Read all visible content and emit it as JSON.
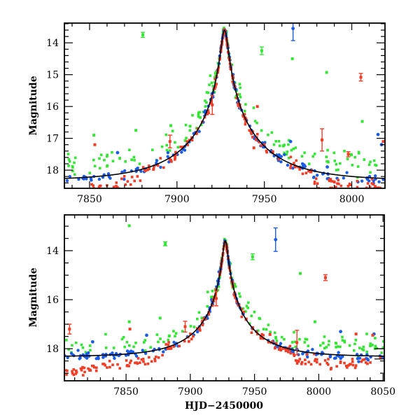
{
  "chart_data": [
    {
      "type": "scatter",
      "panel": "top",
      "title": "",
      "xlabel": "",
      "ylabel": "Magnitude",
      "xlim": [
        7835.6,
        8019
      ],
      "ylim": [
        18.57,
        13.38
      ],
      "y_inverted": true,
      "x_ticks": [
        7850,
        7900,
        7950,
        8000
      ],
      "x_tick_labels": [
        "7850",
        "7900",
        "7950",
        "8000"
      ],
      "x_minor_step": 10,
      "y_ticks": [
        14,
        15,
        16,
        17,
        18
      ],
      "y_tick_labels": [
        "14",
        "15",
        "16",
        "17",
        "18"
      ],
      "y_minor_step": 0.2,
      "grid": false,
      "legend": "none",
      "model": {
        "name": "point-lens model",
        "t0": 7927.2,
        "u0": 0.045,
        "tE": 42,
        "baseline": 18.33,
        "peak": 13.6,
        "color": "#000000"
      },
      "series": [
        {
          "name": "green",
          "color": "#33e633",
          "outliers": [
            [
              7880.5,
              13.75,
              0.08
            ],
            [
              7948.5,
              14.25,
              0.12
            ],
            [
              7985.6,
              14.93,
              0.04
            ],
            [
              7966.0,
              14.5,
              0.0
            ],
            [
              7876.5,
              16.75,
              0.03
            ],
            [
              7852.5,
              16.9,
              0.03
            ],
            [
              7896.5,
              16.6,
              0.03
            ],
            [
              7907.5,
              16.62,
              0.03
            ],
            [
              8006.0,
              16.47,
              0.03
            ]
          ]
        },
        {
          "name": "blue",
          "color": "#1a5ce6",
          "outliers": [
            [
              7966.4,
              13.55,
              0.38
            ],
            [
              7866.0,
              17.45,
              0.03
            ],
            [
              7965.0,
              17.1,
              0.03
            ],
            [
              7986.0,
              17.9,
              0.03
            ],
            [
              8015.0,
              16.88,
              0.03
            ],
            [
              8017.0,
              17.2,
              0.03
            ]
          ]
        },
        {
          "name": "red",
          "color": "#f23d26",
          "outliers": [
            [
              8005.2,
              15.08,
              0.12
            ],
            [
              7853.0,
              17.2,
              0.03
            ],
            [
              7896.0,
              17.1,
              0.2
            ],
            [
              7920.2,
              15.95,
              0.3
            ],
            [
              7983.0,
              17.05,
              0.35
            ],
            [
              7998.0,
              17.5,
              0.08
            ],
            [
              7944.0,
              17.3,
              0.03
            ],
            [
              7946.0,
              16.0,
              0.03
            ],
            [
              8018.0,
              17.1,
              0.03
            ]
          ]
        }
      ]
    },
    {
      "type": "scatter",
      "panel": "bottom",
      "title": "",
      "xlabel": "HJD−2450000",
      "ylabel": "Magnitude",
      "xlim": [
        7802,
        8051
      ],
      "ylim": [
        19.31,
        12.54
      ],
      "y_inverted": true,
      "x_ticks": [
        7850,
        7900,
        7950,
        8000,
        8050
      ],
      "x_tick_labels": [
        "7850",
        "7900",
        "7950",
        "8000",
        "8050"
      ],
      "x_minor_step": 10,
      "y_ticks": [
        14,
        16,
        18
      ],
      "y_tick_labels": [
        "14",
        "16",
        "18"
      ],
      "y_minor_step": 0.5,
      "grid": false,
      "legend": "none",
      "model": {
        "name": "point-lens model",
        "t0": 7927.2,
        "u0": 0.045,
        "tE": 42,
        "baseline": 18.33,
        "peak": 13.6,
        "color": "#000000"
      },
      "reference_levels": [
        18.0,
        18.42
      ],
      "series": [
        {
          "name": "green",
          "color": "#33e633",
          "outliers": [
            [
              7852.5,
              12.98,
              0.03
            ],
            [
              7880.5,
              13.72,
              0.08
            ],
            [
              7948.5,
              14.25,
              0.12
            ],
            [
              7985.6,
              14.93,
              0.04
            ],
            [
              7876.5,
              16.75,
              0.03
            ],
            [
              7852.5,
              16.9,
              0.03
            ],
            [
              7997.0,
              16.9,
              0.03
            ]
          ]
        },
        {
          "name": "blue",
          "color": "#1a5ce6",
          "outliers": [
            [
              7966.4,
              13.55,
              0.48
            ],
            [
              7866.0,
              17.45,
              0.03
            ],
            [
              7824.0,
              17.72,
              0.03
            ],
            [
              8017.0,
              17.3,
              0.03
            ],
            [
              8043.0,
              17.4,
              0.03
            ]
          ]
        },
        {
          "name": "red",
          "color": "#f23d26",
          "outliers": [
            [
              8005.2,
              15.1,
              0.12
            ],
            [
              7806.0,
              17.2,
              0.2
            ],
            [
              7853.0,
              17.2,
              0.03
            ],
            [
              7896.0,
              17.1,
              0.22
            ],
            [
              7920.2,
              15.95,
              0.3
            ],
            [
              7983.0,
              17.75,
              0.5
            ],
            [
              7962.0,
              17.42,
              0.03
            ],
            [
              8029.0,
              17.4,
              0.03
            ],
            [
              8042.0,
              17.45,
              0.03
            ]
          ]
        }
      ]
    }
  ]
}
